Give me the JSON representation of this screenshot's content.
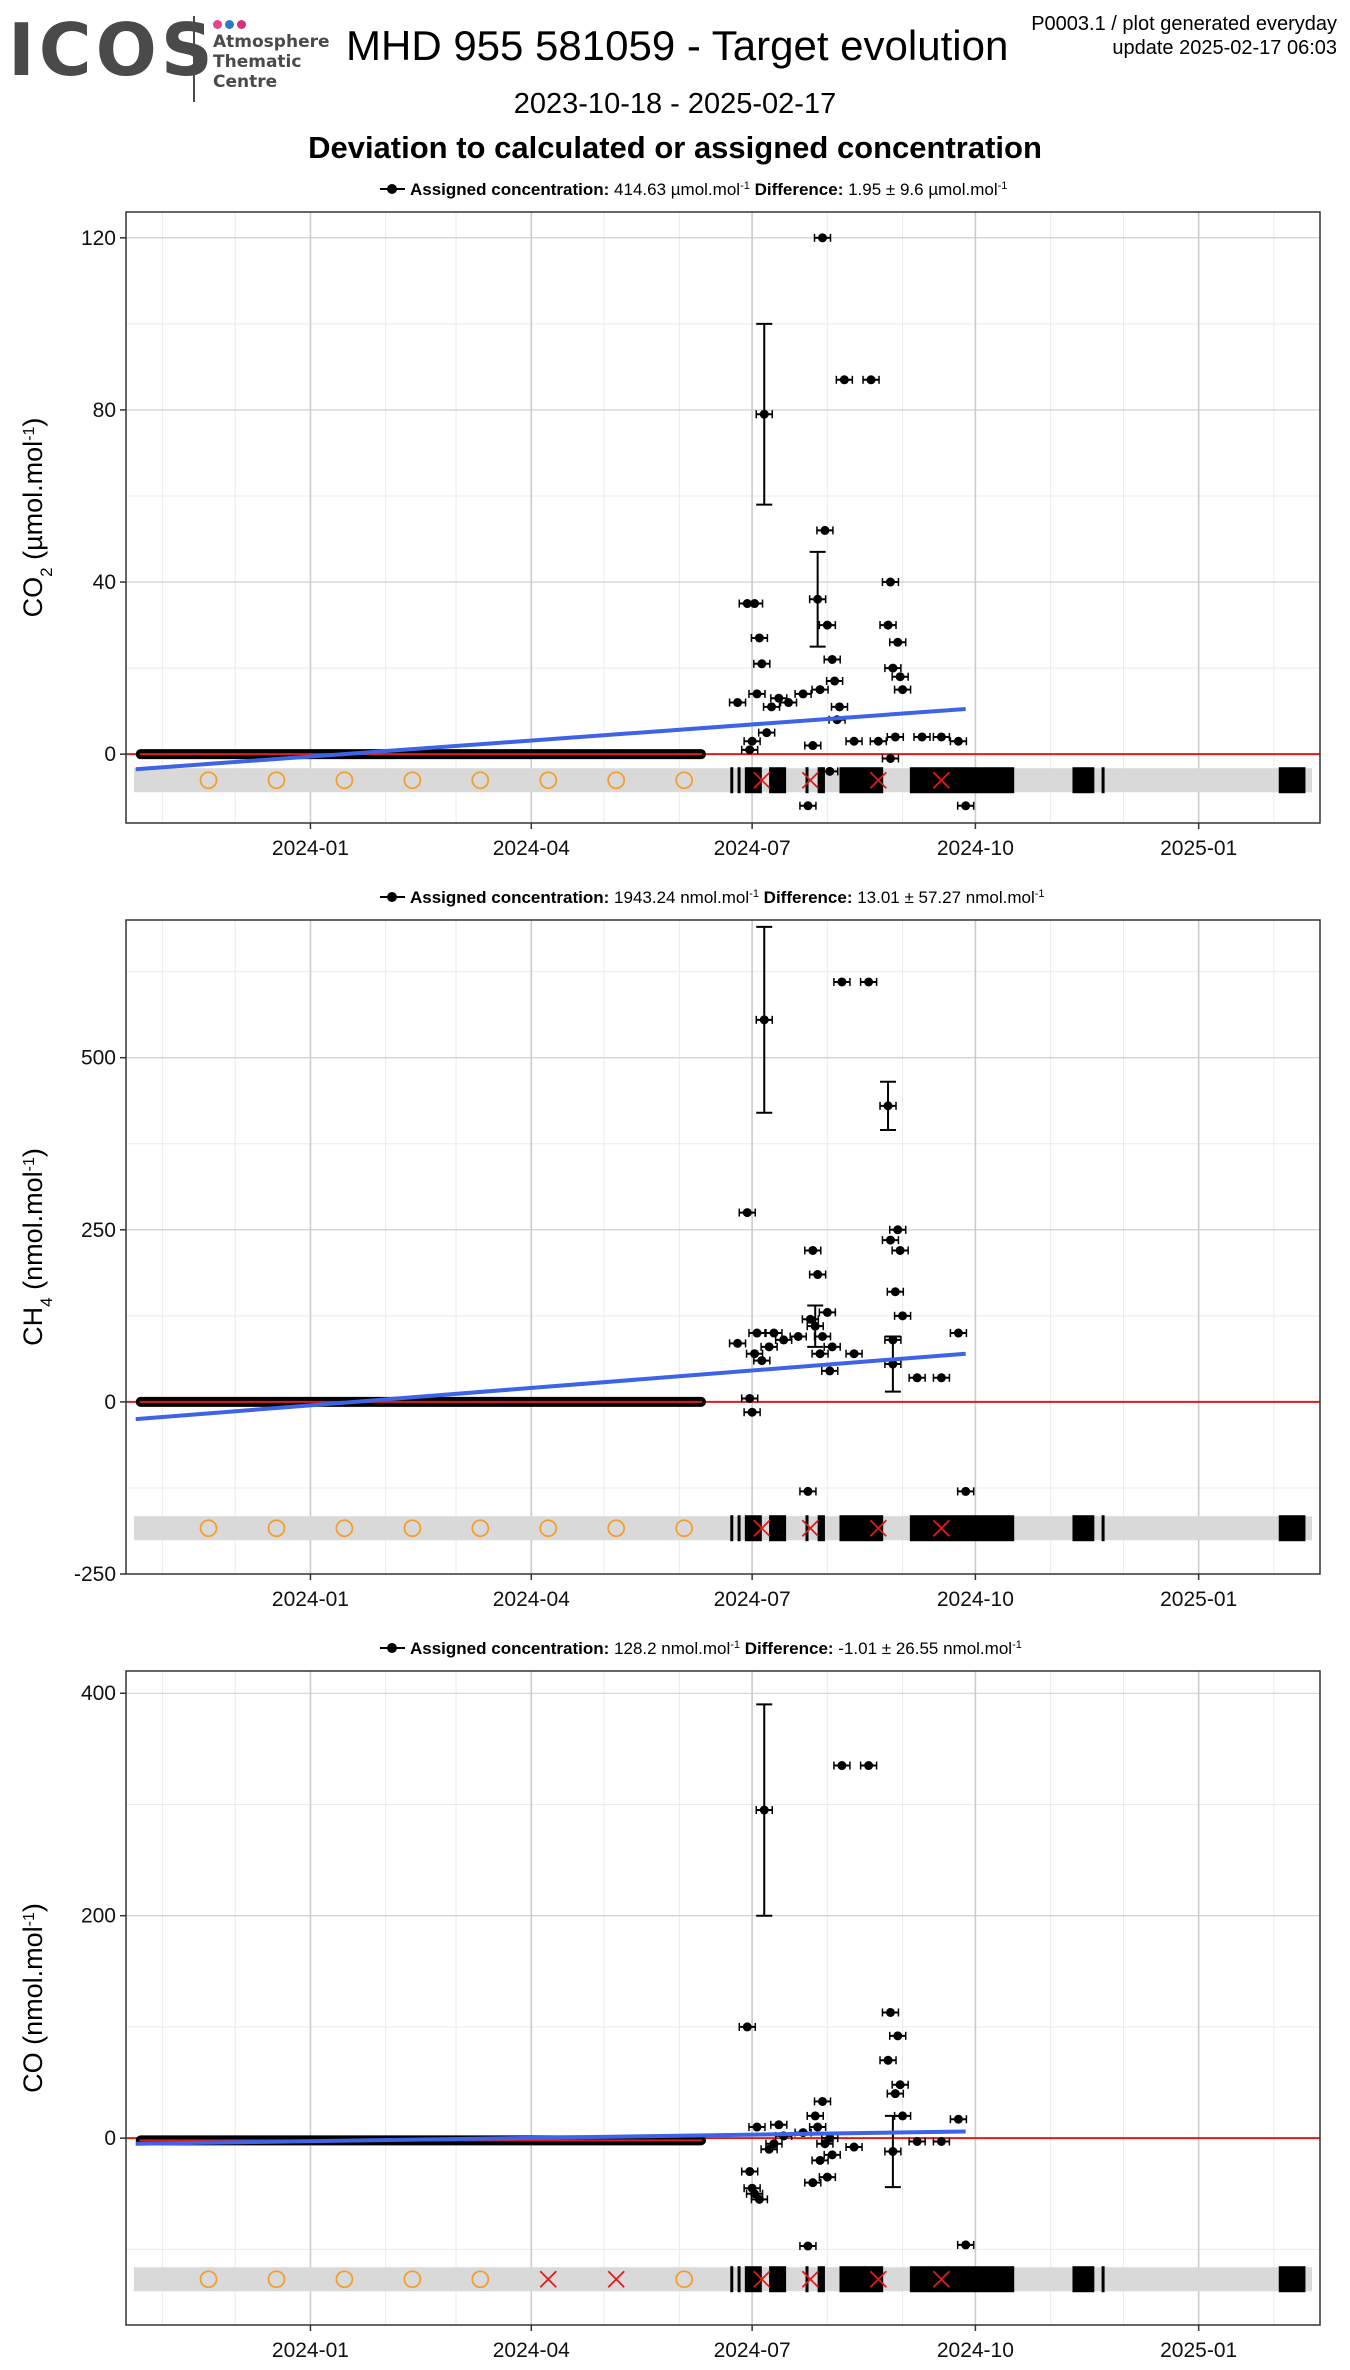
{
  "header": {
    "logo_text": "ICOS",
    "logo_subtitle": [
      "Atmosphere",
      "Thematic",
      "Centre"
    ],
    "logo_dot_colors": [
      "#e8438b",
      "#2b7bbf",
      "#d6317a"
    ],
    "title": "MHD 955 581059 - Target evolution",
    "meta_line1": "P0003.1 / plot generated everyday",
    "meta_line2": "update  2025-02-17 06:03",
    "date_range": "2023-10-18 - 2025-02-17",
    "heading": "Deviation to calculated or assigned concentration"
  },
  "colors": {
    "points": "#000000",
    "trend": "#3d63e6",
    "zero_line": "#e01b1b",
    "flag_band": "#d9d9d9",
    "circle_marker": "#f0a030",
    "cross_marker": "#e01b1b",
    "grid_major": "#cccccc",
    "grid_minor": "#ebebeb"
  },
  "chart_data": [
    {
      "type": "scatter",
      "species": "CO2",
      "ylabel_main": "CO",
      "ylabel_sub": "2",
      "ylabel_unit": " (µmol.mol",
      "ylabel_sup": "-1",
      "ylabel_close": ")",
      "caption": {
        "assigned_label": "Assigned concentration:",
        "assigned_value": "414.63 µmol.mol",
        "difference_label": "Difference:",
        "difference_value": "1.95 ± 9.6 µmol.mol",
        "sup": "-1"
      },
      "ylim": [
        -16,
        126
      ],
      "yticks": [
        0,
        40,
        80,
        120
      ],
      "xticks": [
        "2024-01",
        "2024-04",
        "2024-07",
        "2024-10",
        "2025-01"
      ],
      "flat_segment": {
        "x_start": "2023-10-21",
        "x_end": "2024-06-12",
        "y": 0
      },
      "trend": {
        "x_start": "2023-10-21",
        "y_start": -3.5,
        "x_end": "2024-09-27",
        "y_end": 10.5
      },
      "points": [
        {
          "x": "2024-06-25",
          "y": 12
        },
        {
          "x": "2024-06-29",
          "y": 35
        },
        {
          "x": "2024-07-02",
          "y": 35
        },
        {
          "x": "2024-06-30",
          "y": 1
        },
        {
          "x": "2024-07-01",
          "y": 3
        },
        {
          "x": "2024-07-03",
          "y": 14
        },
        {
          "x": "2024-07-04",
          "y": 27
        },
        {
          "x": "2024-07-05",
          "y": 21
        },
        {
          "x": "2024-07-06",
          "y": 79,
          "err": 21
        },
        {
          "x": "2024-07-07",
          "y": 5
        },
        {
          "x": "2024-07-09",
          "y": 11
        },
        {
          "x": "2024-07-12",
          "y": 13
        },
        {
          "x": "2024-07-16",
          "y": 12
        },
        {
          "x": "2024-07-22",
          "y": 14
        },
        {
          "x": "2024-07-24",
          "y": -12
        },
        {
          "x": "2024-07-26",
          "y": 2
        },
        {
          "x": "2024-07-28",
          "y": 36,
          "err": 11
        },
        {
          "x": "2024-07-29",
          "y": 15
        },
        {
          "x": "2024-07-30",
          "y": 120
        },
        {
          "x": "2024-07-31",
          "y": 52
        },
        {
          "x": "2024-08-01",
          "y": 30
        },
        {
          "x": "2024-08-02",
          "y": -4
        },
        {
          "x": "2024-08-03",
          "y": 22
        },
        {
          "x": "2024-08-04",
          "y": 17
        },
        {
          "x": "2024-08-05",
          "y": 8
        },
        {
          "x": "2024-08-06",
          "y": 11
        },
        {
          "x": "2024-08-08",
          "y": 87
        },
        {
          "x": "2024-08-12",
          "y": 3
        },
        {
          "x": "2024-08-19",
          "y": 87
        },
        {
          "x": "2024-08-22",
          "y": 3
        },
        {
          "x": "2024-08-26",
          "y": 30
        },
        {
          "x": "2024-08-27",
          "y": 40
        },
        {
          "x": "2024-08-28",
          "y": 20
        },
        {
          "x": "2024-08-29",
          "y": 4
        },
        {
          "x": "2024-08-30",
          "y": 26
        },
        {
          "x": "2024-08-31",
          "y": 18
        },
        {
          "x": "2024-09-01",
          "y": 15
        },
        {
          "x": "2024-08-27",
          "y": -1
        },
        {
          "x": "2024-09-09",
          "y": 4
        },
        {
          "x": "2024-09-17",
          "y": 4
        },
        {
          "x": "2024-09-24",
          "y": 3
        },
        {
          "x": "2024-09-27",
          "y": -12
        }
      ],
      "flag_circles": [
        "2023-11-20",
        "2023-12-18",
        "2024-01-15",
        "2024-02-12",
        "2024-03-11",
        "2024-04-08",
        "2024-05-06",
        "2024-06-03"
      ],
      "flag_crosses": [
        "2024-07-05",
        "2024-07-25",
        "2024-08-22",
        "2024-09-17"
      ],
      "flag_blocks": [
        {
          "x_start": "2024-06-22",
          "x_end": "2024-06-23"
        },
        {
          "x_start": "2024-06-25",
          "x_end": "2024-06-26"
        },
        {
          "x_start": "2024-06-28",
          "x_end": "2024-07-05"
        },
        {
          "x_start": "2024-07-08",
          "x_end": "2024-07-15"
        },
        {
          "x_start": "2024-07-23",
          "x_end": "2024-07-24"
        },
        {
          "x_start": "2024-07-28",
          "x_end": "2024-07-31"
        },
        {
          "x_start": "2024-08-06",
          "x_end": "2024-08-24"
        },
        {
          "x_start": "2024-09-04",
          "x_end": "2024-10-17"
        },
        {
          "x_start": "2024-11-10",
          "x_end": "2024-11-19"
        },
        {
          "x_start": "2024-11-22",
          "x_end": "2024-11-23"
        },
        {
          "x_start": "2025-02-03",
          "x_end": "2025-02-14"
        }
      ]
    },
    {
      "type": "scatter",
      "species": "CH4",
      "ylabel_main": "CH",
      "ylabel_sub": "4",
      "ylabel_unit": " (nmol.mol",
      "ylabel_sup": "-1",
      "ylabel_close": ")",
      "caption": {
        "assigned_label": "Assigned concentration:",
        "assigned_value": "1943.24 nmol.mol",
        "difference_label": "Difference:",
        "difference_value": "13.01 ± 57.27 nmol.mol",
        "sup": "-1"
      },
      "ylim": [
        -250,
        700
      ],
      "yticks": [
        -250,
        0,
        250,
        500
      ],
      "xticks": [
        "2024-01",
        "2024-04",
        "2024-07",
        "2024-10",
        "2025-01"
      ],
      "flat_segment": {
        "x_start": "2023-10-21",
        "x_end": "2024-06-12",
        "y": 0
      },
      "trend": {
        "x_start": "2023-10-21",
        "y_start": -25,
        "x_end": "2024-09-27",
        "y_end": 70
      },
      "points": [
        {
          "x": "2024-06-25",
          "y": 85
        },
        {
          "x": "2024-06-29",
          "y": 275
        },
        {
          "x": "2024-06-30",
          "y": 5
        },
        {
          "x": "2024-07-01",
          "y": -15
        },
        {
          "x": "2024-07-02",
          "y": 70
        },
        {
          "x": "2024-07-03",
          "y": 100
        },
        {
          "x": "2024-07-05",
          "y": 60
        },
        {
          "x": "2024-07-06",
          "y": 555,
          "err": 135
        },
        {
          "x": "2024-07-08",
          "y": 80
        },
        {
          "x": "2024-07-10",
          "y": 100
        },
        {
          "x": "2024-07-14",
          "y": 90
        },
        {
          "x": "2024-07-20",
          "y": 95
        },
        {
          "x": "2024-07-24",
          "y": -130
        },
        {
          "x": "2024-07-25",
          "y": 120
        },
        {
          "x": "2024-07-26",
          "y": 220
        },
        {
          "x": "2024-07-27",
          "y": 110,
          "err": 30
        },
        {
          "x": "2024-07-28",
          "y": 185
        },
        {
          "x": "2024-07-29",
          "y": 70
        },
        {
          "x": "2024-07-30",
          "y": 95
        },
        {
          "x": "2024-08-01",
          "y": 130
        },
        {
          "x": "2024-08-02",
          "y": 45
        },
        {
          "x": "2024-08-03",
          "y": 80
        },
        {
          "x": "2024-08-07",
          "y": 610
        },
        {
          "x": "2024-08-12",
          "y": 70
        },
        {
          "x": "2024-08-18",
          "y": 610
        },
        {
          "x": "2024-08-26",
          "y": 430,
          "err": 35
        },
        {
          "x": "2024-08-27",
          "y": 235
        },
        {
          "x": "2024-08-28",
          "y": 55,
          "err": 40
        },
        {
          "x": "2024-08-29",
          "y": 160
        },
        {
          "x": "2024-08-30",
          "y": 250
        },
        {
          "x": "2024-08-31",
          "y": 220
        },
        {
          "x": "2024-09-01",
          "y": 125
        },
        {
          "x": "2024-08-28",
          "y": 90
        },
        {
          "x": "2024-09-07",
          "y": 35
        },
        {
          "x": "2024-09-17",
          "y": 35
        },
        {
          "x": "2024-09-24",
          "y": 100
        },
        {
          "x": "2024-09-27",
          "y": -130
        }
      ],
      "flag_circles": [
        "2023-11-20",
        "2023-12-18",
        "2024-01-15",
        "2024-02-12",
        "2024-03-11",
        "2024-04-08",
        "2024-05-06",
        "2024-06-03"
      ],
      "flag_crosses": [
        "2024-07-05",
        "2024-07-25",
        "2024-08-22",
        "2024-09-17"
      ],
      "flag_blocks": [
        {
          "x_start": "2024-06-22",
          "x_end": "2024-06-23"
        },
        {
          "x_start": "2024-06-25",
          "x_end": "2024-06-26"
        },
        {
          "x_start": "2024-06-28",
          "x_end": "2024-07-05"
        },
        {
          "x_start": "2024-07-08",
          "x_end": "2024-07-15"
        },
        {
          "x_start": "2024-07-23",
          "x_end": "2024-07-24"
        },
        {
          "x_start": "2024-07-28",
          "x_end": "2024-07-31"
        },
        {
          "x_start": "2024-08-06",
          "x_end": "2024-08-24"
        },
        {
          "x_start": "2024-09-04",
          "x_end": "2024-10-17"
        },
        {
          "x_start": "2024-11-10",
          "x_end": "2024-11-19"
        },
        {
          "x_start": "2024-11-22",
          "x_end": "2024-11-23"
        },
        {
          "x_start": "2025-02-03",
          "x_end": "2025-02-14"
        }
      ]
    },
    {
      "type": "scatter",
      "species": "CO",
      "ylabel_main": "CO",
      "ylabel_sub": "",
      "ylabel_unit": " (nmol.mol",
      "ylabel_sup": "-1",
      "ylabel_close": ")",
      "caption": {
        "assigned_label": "Assigned concentration:",
        "assigned_value": "128.2 nmol.mol",
        "difference_label": "Difference:",
        "difference_value": "-1.01 ± 26.55 nmol.mol",
        "sup": "-1"
      },
      "ylim": [
        -168,
        420
      ],
      "yticks": [
        0,
        200,
        400
      ],
      "xticks": [
        "2024-01",
        "2024-04",
        "2024-07",
        "2024-10",
        "2025-01"
      ],
      "flat_segment": {
        "x_start": "2023-10-21",
        "x_end": "2024-06-12",
        "y": -2
      },
      "trend": {
        "x_start": "2023-10-21",
        "y_start": -5,
        "x_end": "2024-09-27",
        "y_end": 6
      },
      "points": [
        {
          "x": "2024-06-29",
          "y": 100
        },
        {
          "x": "2024-06-30",
          "y": -30
        },
        {
          "x": "2024-07-01",
          "y": -45
        },
        {
          "x": "2024-07-02",
          "y": -50
        },
        {
          "x": "2024-07-03",
          "y": 10
        },
        {
          "x": "2024-07-04",
          "y": -55
        },
        {
          "x": "2024-07-06",
          "y": 295,
          "err": 95
        },
        {
          "x": "2024-07-08",
          "y": -10
        },
        {
          "x": "2024-07-10",
          "y": -5
        },
        {
          "x": "2024-07-12",
          "y": 12
        },
        {
          "x": "2024-07-14",
          "y": 2
        },
        {
          "x": "2024-07-22",
          "y": 5
        },
        {
          "x": "2024-07-24",
          "y": -97
        },
        {
          "x": "2024-07-26",
          "y": -40
        },
        {
          "x": "2024-07-27",
          "y": 20
        },
        {
          "x": "2024-07-28",
          "y": 10
        },
        {
          "x": "2024-07-29",
          "y": -20
        },
        {
          "x": "2024-07-30",
          "y": 33
        },
        {
          "x": "2024-07-31",
          "y": -5
        },
        {
          "x": "2024-08-01",
          "y": -35
        },
        {
          "x": "2024-08-02",
          "y": 0
        },
        {
          "x": "2024-08-03",
          "y": -15
        },
        {
          "x": "2024-08-07",
          "y": 335
        },
        {
          "x": "2024-08-12",
          "y": -8
        },
        {
          "x": "2024-08-18",
          "y": 335
        },
        {
          "x": "2024-08-26",
          "y": 70
        },
        {
          "x": "2024-08-27",
          "y": 113
        },
        {
          "x": "2024-08-28",
          "y": -12,
          "err": 32
        },
        {
          "x": "2024-08-29",
          "y": 40
        },
        {
          "x": "2024-08-30",
          "y": 92
        },
        {
          "x": "2024-08-31",
          "y": 48
        },
        {
          "x": "2024-09-01",
          "y": 20
        },
        {
          "x": "2024-09-07",
          "y": -3
        },
        {
          "x": "2024-09-17",
          "y": -3
        },
        {
          "x": "2024-09-24",
          "y": 17
        },
        {
          "x": "2024-09-27",
          "y": -96
        }
      ],
      "flag_circles": [
        "2023-11-20",
        "2023-12-18",
        "2024-01-15",
        "2024-02-12",
        "2024-03-11",
        "2024-06-03"
      ],
      "flag_crosses": [
        "2024-04-08",
        "2024-05-06",
        "2024-07-05",
        "2024-07-25",
        "2024-08-22",
        "2024-09-17"
      ],
      "flag_blocks": [
        {
          "x_start": "2024-06-22",
          "x_end": "2024-06-23"
        },
        {
          "x_start": "2024-06-25",
          "x_end": "2024-06-26"
        },
        {
          "x_start": "2024-06-28",
          "x_end": "2024-07-05"
        },
        {
          "x_start": "2024-07-08",
          "x_end": "2024-07-15"
        },
        {
          "x_start": "2024-07-23",
          "x_end": "2024-07-24"
        },
        {
          "x_start": "2024-07-28",
          "x_end": "2024-07-31"
        },
        {
          "x_start": "2024-08-06",
          "x_end": "2024-08-24"
        },
        {
          "x_start": "2024-09-04",
          "x_end": "2024-10-17"
        },
        {
          "x_start": "2024-11-10",
          "x_end": "2024-11-19"
        },
        {
          "x_start": "2024-11-22",
          "x_end": "2024-11-23"
        },
        {
          "x_start": "2025-02-03",
          "x_end": "2025-02-14"
        }
      ]
    }
  ]
}
